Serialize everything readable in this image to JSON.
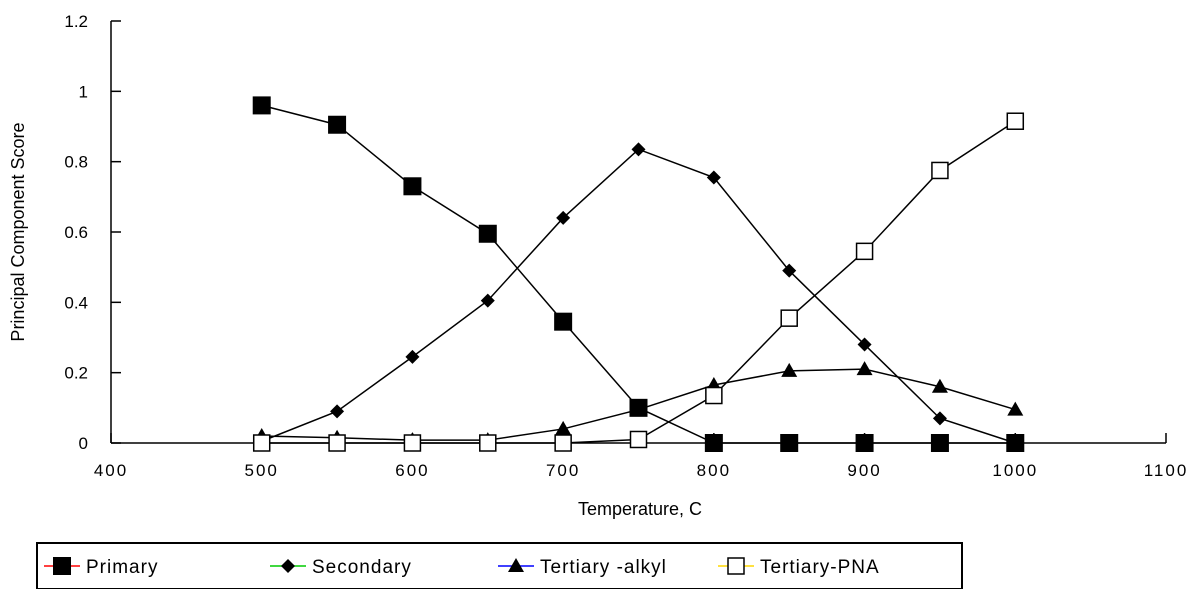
{
  "chart_data": {
    "type": "line",
    "title": "",
    "xlabel": "Temperature, C",
    "ylabel": "Principal Component Score",
    "xlim": [
      400,
      1100
    ],
    "ylim": [
      0,
      1.2
    ],
    "x_ticks": [
      400,
      500,
      600,
      700,
      800,
      900,
      1000,
      1100
    ],
    "y_ticks": [
      0,
      0.2,
      0.4,
      0.6,
      0.8,
      1,
      1.2
    ],
    "x_tick_labels": [
      "400",
      "500",
      "600",
      "700",
      "800",
      "900",
      "1000",
      "1100"
    ],
    "y_tick_labels": [
      "0",
      "0.2",
      "0.4",
      "0.6",
      "0.8",
      "1",
      "1.2"
    ],
    "grid": false,
    "legend_position": "bottom",
    "series": [
      {
        "name": "Primary",
        "marker": "filled-square",
        "color": "#000000",
        "legend_line_color": "#ff0000",
        "points": [
          [
            500,
            0.96
          ],
          [
            550,
            0.905
          ],
          [
            600,
            0.73
          ],
          [
            650,
            0.595
          ],
          [
            700,
            0.345
          ],
          [
            750,
            0.1
          ],
          [
            800,
            0.0
          ],
          [
            850,
            0.0
          ],
          [
            900,
            0.0
          ],
          [
            950,
            0.0
          ],
          [
            1000,
            0.0
          ]
        ]
      },
      {
        "name": "Secondary",
        "marker": "filled-diamond",
        "color": "#000000",
        "legend_line_color": "#00cc00",
        "points": [
          [
            500,
            0.005
          ],
          [
            550,
            0.09
          ],
          [
            600,
            0.245
          ],
          [
            650,
            0.405
          ],
          [
            700,
            0.64
          ],
          [
            750,
            0.835
          ],
          [
            800,
            0.755
          ],
          [
            850,
            0.49
          ],
          [
            900,
            0.28
          ],
          [
            950,
            0.07
          ],
          [
            1000,
            0.0
          ]
        ]
      },
      {
        "name": "Tertiary -alkyl",
        "marker": "filled-triangle",
        "color": "#000000",
        "legend_line_color": "#0000ff",
        "points": [
          [
            500,
            0.02
          ],
          [
            550,
            0.015
          ],
          [
            600,
            0.008
          ],
          [
            650,
            0.008
          ],
          [
            700,
            0.04
          ],
          [
            750,
            0.095
          ],
          [
            800,
            0.165
          ],
          [
            850,
            0.205
          ],
          [
            900,
            0.21
          ],
          [
            950,
            0.16
          ],
          [
            1000,
            0.095
          ]
        ]
      },
      {
        "name": "Tertiary-PNA",
        "marker": "open-square",
        "color": "#000000",
        "legend_line_color": "#ffd700",
        "points": [
          [
            500,
            0.0
          ],
          [
            550,
            0.0
          ],
          [
            600,
            0.0
          ],
          [
            650,
            0.0
          ],
          [
            700,
            0.0
          ],
          [
            750,
            0.01
          ],
          [
            800,
            0.135
          ],
          [
            850,
            0.355
          ],
          [
            900,
            0.545
          ],
          [
            950,
            0.775
          ],
          [
            1000,
            0.915
          ]
        ]
      }
    ]
  }
}
